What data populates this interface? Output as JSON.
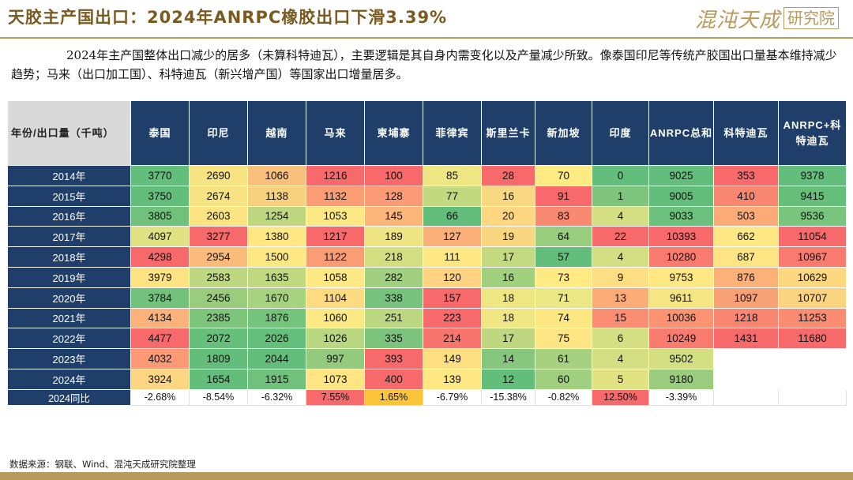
{
  "header": {
    "title": "天胶主产国出口：2024年ANRPC橡胶出口下滑3.39%",
    "logo_script": "混沌天成",
    "logo_box": "研究院"
  },
  "paragraph": "2024年主产国整体出口减少的居多（未算科特迪瓦），主要逻辑是其自身内需变化以及产量减少所致。像泰国印尼等传统产胶国出口量基本维持减少趋势；马来（出口加工国）、科特迪瓦（新兴增产国）等国家出口增量居多。",
  "table": {
    "corner": "年份/出口量（千吨）",
    "columns": [
      "泰国",
      "印尼",
      "越南",
      "马来",
      "柬埔寨",
      "菲律宾",
      "斯里兰卡",
      "新加坡",
      "印度",
      "ANRPC总和",
      "科特迪瓦",
      "ANRPC+科特迪瓦"
    ],
    "rows": [
      {
        "year": "2014年",
        "values": [
          "3770",
          "2690",
          "1066",
          "1216",
          "100",
          "85",
          "28",
          "70",
          "0",
          "9025",
          "353",
          "9378"
        ]
      },
      {
        "year": "2015年",
        "values": [
          "3750",
          "2674",
          "1138",
          "1132",
          "128",
          "77",
          "16",
          "91",
          "1",
          "9005",
          "410",
          "9415"
        ]
      },
      {
        "year": "2016年",
        "values": [
          "3805",
          "2603",
          "1254",
          "1053",
          "145",
          "66",
          "20",
          "83",
          "4",
          "9033",
          "503",
          "9536"
        ]
      },
      {
        "year": "2017年",
        "values": [
          "4097",
          "3277",
          "1380",
          "1217",
          "189",
          "127",
          "19",
          "64",
          "22",
          "10393",
          "662",
          "11054"
        ]
      },
      {
        "year": "2018年",
        "values": [
          "4298",
          "2954",
          "1500",
          "1122",
          "218",
          "111",
          "17",
          "57",
          "4",
          "10280",
          "687",
          "10967"
        ]
      },
      {
        "year": "2019年",
        "values": [
          "3979",
          "2583",
          "1635",
          "1058",
          "282",
          "120",
          "16",
          "73",
          "9",
          "9753",
          "876",
          "10629"
        ]
      },
      {
        "year": "2020年",
        "values": [
          "3784",
          "2456",
          "1670",
          "1104",
          "338",
          "157",
          "18",
          "71",
          "13",
          "9611",
          "1097",
          "10707"
        ]
      },
      {
        "year": "2021年",
        "values": [
          "4134",
          "2385",
          "1876",
          "1060",
          "251",
          "223",
          "18",
          "74",
          "15",
          "10036",
          "1218",
          "11253"
        ]
      },
      {
        "year": "2022年",
        "values": [
          "4477",
          "2072",
          "2026",
          "1026",
          "335",
          "214",
          "17",
          "75",
          "6",
          "10249",
          "1431",
          "11680"
        ]
      },
      {
        "year": "2023年",
        "values": [
          "4032",
          "1809",
          "2044",
          "997",
          "393",
          "149",
          "14",
          "61",
          "4",
          "9502",
          "",
          ""
        ]
      },
      {
        "year": "2024年",
        "values": [
          "3924",
          "1654",
          "1915",
          "1073",
          "400",
          "139",
          "12",
          "60",
          "5",
          "9180",
          "",
          ""
        ]
      }
    ],
    "yoy": {
      "year": "2024同比",
      "values": [
        "-2.68%",
        "-8.54%",
        "-6.32%",
        "7.55%",
        "1.65%",
        "-6.79%",
        "-15.38%",
        "-0.82%",
        "12.50%",
        "-3.39%",
        "",
        ""
      ]
    },
    "colors": [
      [
        "#63be7b",
        "#f8e383",
        "#f9c07b",
        "#f8696b",
        "#f8696b",
        "#eee683",
        "#f8696b",
        "#ffeb84",
        "#63be7b",
        "#63be7b",
        "#f8696b",
        "#63be7b"
      ],
      [
        "#63be7b",
        "#f7e383",
        "#f8d17f",
        "#fa9d75",
        "#fb9a74",
        "#c3d97f",
        "#f8d880",
        "#f8696b",
        "#7ec47c",
        "#63be7b",
        "#f98670",
        "#65bf7b"
      ],
      [
        "#6fc17b",
        "#fde482",
        "#bed780",
        "#ffe984",
        "#fcb67a",
        "#63be7b",
        "#ffd682",
        "#f88a72",
        "#d3df82",
        "#6cc17c",
        "#fbab78",
        "#79c57d"
      ],
      [
        "#e1e383",
        "#f8696b",
        "#ffe883",
        "#f8696b",
        "#efe483",
        "#fbb079",
        "#f9d780",
        "#99cd7e",
        "#f8696b",
        "#f8696b",
        "#ffe784",
        "#f8696b"
      ],
      [
        "#f8696b",
        "#fbbb7b",
        "#fee883",
        "#fa9d75",
        "#d3de81",
        "#ffe784",
        "#c4da81",
        "#63be7b",
        "#d3df82",
        "#f97b6f",
        "#fee483",
        "#f97a6f"
      ],
      [
        "#fde382",
        "#bed781",
        "#c0d880",
        "#ffe985",
        "#a0cf7f",
        "#fed381",
        "#a1d07f",
        "#ffea84",
        "#fede82",
        "#ffe884",
        "#fbb178",
        "#fdd880"
      ],
      [
        "#72c27c",
        "#99cc7d",
        "#a7d27f",
        "#feda81",
        "#77c37d",
        "#f8696b",
        "#eee683",
        "#eae784",
        "#fbac77",
        "#f6e683",
        "#f8a175",
        "#fcd47f"
      ],
      [
        "#fbb27a",
        "#7ec57c",
        "#74c47c",
        "#fde983",
        "#bcd881",
        "#f8696b",
        "#f0e683",
        "#fde782",
        "#fb8e72",
        "#fb9373",
        "#f98670",
        "#fa8c71"
      ],
      [
        "#f8696b",
        "#66bf7b",
        "#64bf7b",
        "#b9d680",
        "#7cc47d",
        "#f8756e",
        "#bfd781",
        "#fce582",
        "#d3df82",
        "#f97b6f",
        "#f8696b",
        "#f8696b"
      ],
      [
        "#fb9a75",
        "#63be7b",
        "#63be7b",
        "#93ca7e",
        "#f8696b",
        "#fddf82",
        "#86c77d",
        "#a6d17f",
        "#d3df82",
        "#d3e082",
        "",
        ""
      ],
      [
        "#fed681",
        "#63be7b",
        "#6fc17c",
        "#ffe583",
        "#f8696b",
        "#ffe884",
        "#63be7b",
        "#a0cf7f",
        "#e1e383",
        "#99cc7d",
        "",
        ""
      ]
    ],
    "yoy_colors": [
      "#ffffff",
      "#ffffff",
      "#ffffff",
      "#f8696b",
      "#fcc43a",
      "#ffffff",
      "#ffffff",
      "#ffffff",
      "#f8696b",
      "#ffffff",
      "",
      ""
    ]
  },
  "source": "数据来源：钢联、Wind、混沌天成研究院整理"
}
